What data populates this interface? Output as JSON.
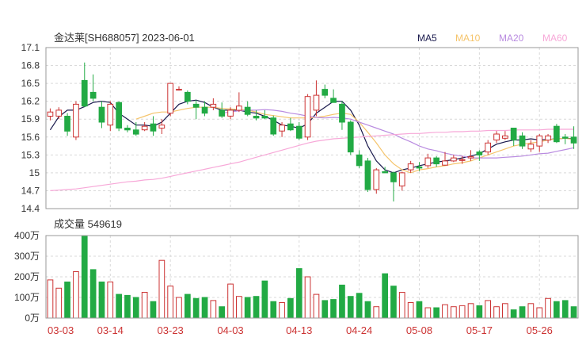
{
  "header": {
    "title": "金达莱[SH688057] 2023-06-01",
    "volume_title": "成交量 549619"
  },
  "legend": [
    {
      "label": "MA5",
      "color": "#1a1a4d"
    },
    {
      "label": "MA10",
      "color": "#f5c46b"
    },
    {
      "label": "MA20",
      "color": "#b98be0"
    },
    {
      "label": "MA60",
      "color": "#f7a8d8"
    }
  ],
  "colors": {
    "up": "#cc3333",
    "down": "#22aa44"
  },
  "chart_data": [
    {
      "type": "candlestick",
      "title": "金达莱[SH688057] 2023-06-01",
      "ylim": [
        14.4,
        17.1
      ],
      "yticks": [
        "17.1",
        "16.8",
        "16.5",
        "16.2",
        "15.9",
        "15.6",
        "15.3",
        "15",
        "14.7",
        "14.4"
      ],
      "xticks": [
        {
          "label": "03-03",
          "index": 0
        },
        {
          "label": "03-14",
          "index": 7
        },
        {
          "label": "03-23",
          "index": 14
        },
        {
          "label": "04-03",
          "index": 21
        },
        {
          "label": "04-13",
          "index": 29
        },
        {
          "label": "04-24",
          "index": 36
        },
        {
          "label": "05-08",
          "index": 43
        },
        {
          "label": "05-17",
          "index": 50
        },
        {
          "label": "05-26",
          "index": 57
        }
      ],
      "ohlc": [
        [
          15.95,
          16.08,
          15.88,
          16.02
        ],
        [
          15.95,
          16.1,
          15.9,
          16.05
        ],
        [
          15.95,
          16.0,
          15.62,
          15.7
        ],
        [
          15.6,
          16.2,
          15.55,
          16.15
        ],
        [
          16.55,
          16.85,
          16.1,
          16.12
        ],
        [
          16.35,
          16.65,
          16.2,
          16.25
        ],
        [
          16.1,
          16.2,
          15.75,
          15.85
        ],
        [
          15.8,
          16.2,
          15.7,
          16.15
        ],
        [
          16.18,
          16.2,
          15.7,
          15.75
        ],
        [
          15.75,
          15.8,
          15.68,
          15.72
        ],
        [
          15.72,
          15.85,
          15.62,
          15.65
        ],
        [
          15.72,
          15.85,
          15.7,
          15.78
        ],
        [
          15.82,
          15.95,
          15.62,
          15.7
        ],
        [
          15.75,
          15.9,
          15.65,
          15.8
        ],
        [
          16.0,
          16.5,
          15.95,
          16.5
        ],
        [
          16.4,
          16.45,
          16.38,
          16.4
        ],
        [
          16.35,
          16.38,
          16.15,
          16.2
        ],
        [
          16.15,
          16.22,
          15.9,
          16.1
        ],
        [
          16.1,
          16.2,
          15.95,
          16.0
        ],
        [
          16.1,
          16.25,
          16.05,
          16.15
        ],
        [
          16.05,
          16.18,
          15.92,
          15.95
        ],
        [
          15.95,
          16.1,
          15.9,
          16.05
        ],
        [
          16.05,
          16.35,
          16.02,
          16.12
        ],
        [
          16.1,
          16.2,
          15.95,
          15.98
        ],
        [
          15.95,
          16.05,
          15.88,
          15.92
        ],
        [
          15.95,
          16.05,
          15.9,
          15.92
        ],
        [
          15.92,
          15.96,
          15.62,
          15.65
        ],
        [
          15.7,
          15.85,
          15.6,
          15.8
        ],
        [
          15.82,
          15.92,
          15.7,
          15.72
        ],
        [
          15.78,
          15.85,
          15.55,
          15.58
        ],
        [
          15.6,
          16.32,
          15.55,
          16.28
        ],
        [
          16.05,
          16.55,
          15.95,
          16.3
        ],
        [
          16.4,
          16.48,
          16.25,
          16.3
        ],
        [
          16.25,
          16.4,
          16.2,
          16.18
        ],
        [
          16.15,
          16.2,
          15.72,
          15.85
        ],
        [
          15.85,
          15.88,
          15.3,
          15.35
        ],
        [
          15.3,
          15.38,
          15.08,
          15.12
        ],
        [
          15.2,
          15.25,
          14.68,
          14.72
        ],
        [
          14.72,
          15.08,
          14.65,
          15.05
        ],
        [
          15.02,
          15.1,
          15.0,
          15.0
        ],
        [
          15.0,
          15.02,
          14.52,
          14.85
        ],
        [
          14.78,
          15.02,
          14.7,
          15.0
        ],
        [
          15.05,
          15.2,
          15.0,
          15.15
        ],
        [
          15.1,
          15.18,
          15.03,
          15.08
        ],
        [
          15.12,
          15.32,
          15.08,
          15.25
        ],
        [
          15.25,
          15.28,
          15.1,
          15.15
        ],
        [
          15.13,
          15.35,
          15.12,
          15.2
        ],
        [
          15.2,
          15.3,
          15.18,
          15.25
        ],
        [
          15.22,
          15.28,
          15.15,
          15.22
        ],
        [
          15.25,
          15.38,
          15.2,
          15.27
        ],
        [
          15.35,
          15.38,
          15.2,
          15.3
        ],
        [
          15.35,
          15.55,
          15.3,
          15.5
        ],
        [
          15.55,
          15.7,
          15.5,
          15.65
        ],
        [
          15.58,
          15.7,
          15.55,
          15.62
        ],
        [
          15.75,
          15.75,
          15.45,
          15.55
        ],
        [
          15.62,
          15.68,
          15.4,
          15.45
        ],
        [
          15.4,
          15.55,
          15.35,
          15.48
        ],
        [
          15.45,
          15.65,
          15.35,
          15.62
        ],
        [
          15.55,
          15.65,
          15.5,
          15.62
        ],
        [
          15.78,
          15.82,
          15.5,
          15.52
        ],
        [
          15.6,
          15.65,
          15.48,
          15.58
        ],
        [
          15.6,
          15.78,
          15.4,
          15.5
        ]
      ],
      "series": [
        {
          "name": "MA5",
          "values": [
            15.72,
            15.94,
            16.05,
            16.05,
            16.11,
            16.18,
            16.2,
            16.18,
            16.0,
            15.9,
            15.8,
            15.8,
            15.78,
            15.85,
            16.0,
            16.15,
            16.2,
            16.22,
            16.18,
            16.1,
            16.05,
            16.05,
            16.05,
            16.02,
            16.0,
            15.95,
            15.88,
            15.8,
            15.78,
            15.75,
            15.82,
            16.0,
            16.1,
            16.2,
            16.2,
            16.05,
            15.8,
            15.45,
            15.2,
            15.05,
            15.0,
            15.05,
            15.08,
            15.12,
            15.15,
            15.18,
            15.2,
            15.22,
            15.25,
            15.28,
            15.32,
            15.4,
            15.48,
            15.52,
            15.55,
            15.55,
            15.57,
            15.55,
            15.56,
            15.57,
            15.58,
            15.57
          ]
        },
        {
          "name": "MA10",
          "values": [
            null,
            null,
            null,
            null,
            null,
            null,
            null,
            null,
            null,
            null,
            15.9,
            15.95,
            16.0,
            16.02,
            16.02,
            16.05,
            16.08,
            16.1,
            16.1,
            16.1,
            16.08,
            16.07,
            16.06,
            16.05,
            16.02,
            15.98,
            15.96,
            15.94,
            15.92,
            15.92,
            15.92,
            15.93,
            15.95,
            15.98,
            16.0,
            15.98,
            15.85,
            15.68,
            15.5,
            15.3,
            15.15,
            15.05,
            15.0,
            15.05,
            15.07,
            15.1,
            15.12,
            15.15,
            15.17,
            15.2,
            15.25,
            15.3,
            15.35,
            15.4,
            15.45,
            15.48,
            15.5,
            15.52,
            15.55,
            15.57,
            15.58,
            15.56
          ]
        },
        {
          "name": "MA20",
          "values": [
            null,
            null,
            null,
            null,
            null,
            null,
            null,
            null,
            null,
            null,
            null,
            null,
            null,
            null,
            null,
            null,
            null,
            null,
            null,
            null,
            16.0,
            16.02,
            16.04,
            16.05,
            16.05,
            16.06,
            16.05,
            16.03,
            16.0,
            15.98,
            15.95,
            15.93,
            15.92,
            15.93,
            15.92,
            15.9,
            15.85,
            15.8,
            15.75,
            15.7,
            15.65,
            15.58,
            15.52,
            15.45,
            15.4,
            15.37,
            15.33,
            15.3,
            15.28,
            15.25,
            15.25,
            15.25,
            15.25,
            15.26,
            15.27,
            15.28,
            15.3,
            15.32,
            15.33,
            15.36,
            15.39,
            15.42
          ]
        },
        {
          "name": "MA60",
          "values": [
            null,
            null,
            null,
            null,
            null,
            null,
            null,
            null,
            null,
            null,
            null,
            null,
            null,
            null,
            null,
            null,
            null,
            null,
            null,
            null,
            null,
            null,
            null,
            null,
            null,
            null,
            null,
            null,
            null,
            null,
            null,
            null,
            null,
            null,
            null,
            null,
            null,
            null,
            null,
            null,
            null,
            null,
            null,
            null,
            null,
            null,
            null,
            null,
            null,
            null,
            null,
            null,
            null,
            null,
            null,
            null,
            null,
            null,
            null,
            null,
            null,
            null
          ]
        },
        {
          "name": "MA60_full",
          "values": [
            14.7,
            14.71,
            14.72,
            14.73,
            14.75,
            14.77,
            14.79,
            14.81,
            14.83,
            14.85,
            14.86,
            14.88,
            14.89,
            14.91,
            14.94,
            14.97,
            15.0,
            15.03,
            15.06,
            15.09,
            15.12,
            15.15,
            15.18,
            15.22,
            15.26,
            15.3,
            15.34,
            15.38,
            15.42,
            15.46,
            15.5,
            15.53,
            15.55,
            15.57,
            15.58,
            15.59,
            15.6,
            15.61,
            15.62,
            15.63,
            15.64,
            15.65,
            15.66,
            15.66,
            15.67,
            15.68,
            15.68,
            15.69,
            15.69,
            15.7,
            15.7,
            15.71,
            15.71,
            15.71,
            15.72,
            15.72,
            15.72,
            15.72,
            15.73,
            15.73,
            15.73,
            15.73
          ]
        }
      ]
    },
    {
      "type": "bar",
      "title": "成交量 549619",
      "ylim": [
        0,
        400
      ],
      "yticks": [
        "400万",
        "300万",
        "200万",
        "100万",
        "0万"
      ],
      "values": [
        185,
        145,
        175,
        225,
        400,
        235,
        175,
        175,
        115,
        110,
        100,
        125,
        80,
        280,
        155,
        100,
        115,
        95,
        100,
        85,
        55,
        165,
        105,
        100,
        105,
        180,
        80,
        75,
        95,
        240,
        200,
        115,
        85,
        90,
        160,
        105,
        120,
        80,
        55,
        215,
        155,
        125,
        75,
        80,
        50,
        50,
        65,
        55,
        60,
        70,
        60,
        85,
        55,
        70,
        40,
        55,
        70,
        50,
        95,
        80,
        85,
        55
      ]
    }
  ]
}
